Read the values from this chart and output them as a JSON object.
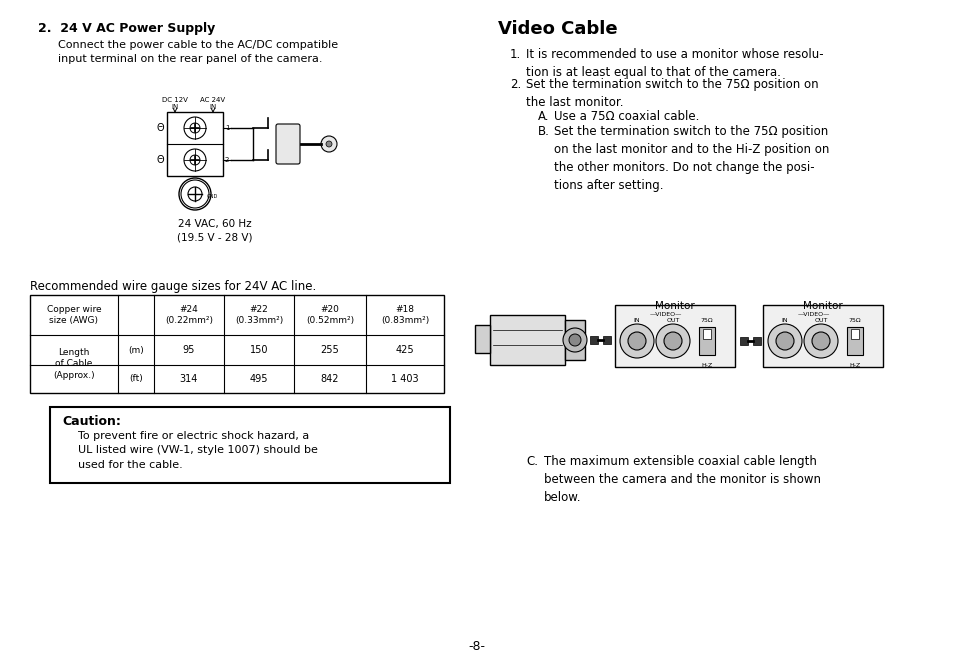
{
  "bg_color": "#ffffff",
  "page_number": "-8-",
  "left_section": {
    "title": "2.  24 V AC Power Supply",
    "body1": "Connect the power cable to the AC/DC compatible\ninput terminal on the rear panel of the camera.",
    "table_header": "Recommended wire gauge sizes for 24V AC line.",
    "caution_title": "Caution:",
    "caution_body": "To prevent fire or electric shock hazard, a\nUL listed wire (VW-1, style 1007) should be\nused for the cable.",
    "diagram_label1": "DC 12V",
    "diagram_label2": "AC 24V",
    "diagram_in1": "IN",
    "diagram_in2": "IN",
    "diagram_caption1": "24 VAC, 60 Hz",
    "diagram_caption2": "(19.5 V - 28 V)",
    "diagram_gnd": "GND",
    "col_headers": [
      "#24\n(0.22mm²)",
      "#22\n(0.33mm²)",
      "#20\n(0.52mm²)",
      "#18\n(0.83mm²)"
    ],
    "row_label": "Copper wire\nsize (AWG)",
    "length_label": "Length\nof Cable\n(Approx.)",
    "unit_m": "(m)",
    "unit_ft": "(ft)",
    "row_m": [
      95,
      150,
      255,
      425
    ],
    "row_ft": [
      314,
      495,
      842,
      "1 403"
    ]
  },
  "right_section": {
    "title": "Video Cable",
    "item1": "It is recommended to use a monitor whose resolu-\ntion is at least equal to that of the camera.",
    "item2": "Set the termination switch to the 75Ω position on\nthe last monitor.",
    "itemA": "Use a 75Ω coaxial cable.",
    "itemB": "Set the termination switch to the 75Ω position\non the last monitor and to the Hi-Z position on\nthe other monitors. Do not change the posi-\ntions after setting.",
    "monitor_label": "Monitor",
    "itemC": "The maximum extensible coaxial cable length\nbetween the camera and the monitor is shown\nbelow."
  }
}
